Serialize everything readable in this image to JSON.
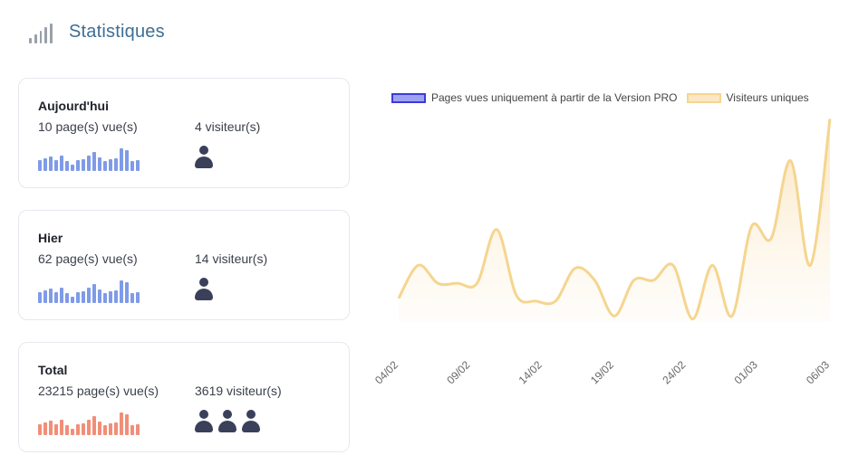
{
  "header": {
    "title": "Statistiques",
    "icon": "signal-bars-icon"
  },
  "cards": [
    {
      "label": "Aujourd'hui",
      "pages": "10 page(s) vue(s)",
      "visitors": "4 visiteur(s)",
      "people": 1,
      "spark_color": "#7f9be8"
    },
    {
      "label": "Hier",
      "pages": "62 page(s) vue(s)",
      "visitors": "14 visiteur(s)",
      "people": 1,
      "spark_color": "#7f9be8"
    },
    {
      "label": "Total",
      "pages": "23215 page(s) vue(s)",
      "visitors": "3619 visiteur(s)",
      "people": 3,
      "spark_color": "#f28e78"
    }
  ],
  "spark_values": [
    0.35,
    0.45,
    0.55,
    0.35,
    0.6,
    0.3,
    0.15,
    0.35,
    0.4,
    0.6,
    0.75,
    0.5,
    0.3,
    0.4,
    0.45,
    0.95,
    0.85,
    0.3,
    0.35
  ],
  "legend": {
    "pro_label": "Pages vues uniquement à partir de la Version PRO",
    "pro_color": "#3b3bdb",
    "visitors_label": "Visiteurs uniques",
    "visitors_color": "#f5d58f"
  },
  "chart_data": {
    "type": "area",
    "x_tick_labels": [
      "04/02",
      "09/02",
      "14/02",
      "19/02",
      "24/02",
      "01/03",
      "06/03"
    ],
    "series": [
      {
        "name": "Visiteurs uniques",
        "values": [
          8,
          19,
          13,
          13,
          13,
          31,
          9,
          7,
          7,
          18,
          14,
          2,
          14,
          14,
          19,
          1,
          19,
          2,
          32,
          28,
          54,
          19,
          68
        ]
      }
    ],
    "ylim": [
      0,
      70
    ],
    "grid": false,
    "legend_position": "top"
  }
}
